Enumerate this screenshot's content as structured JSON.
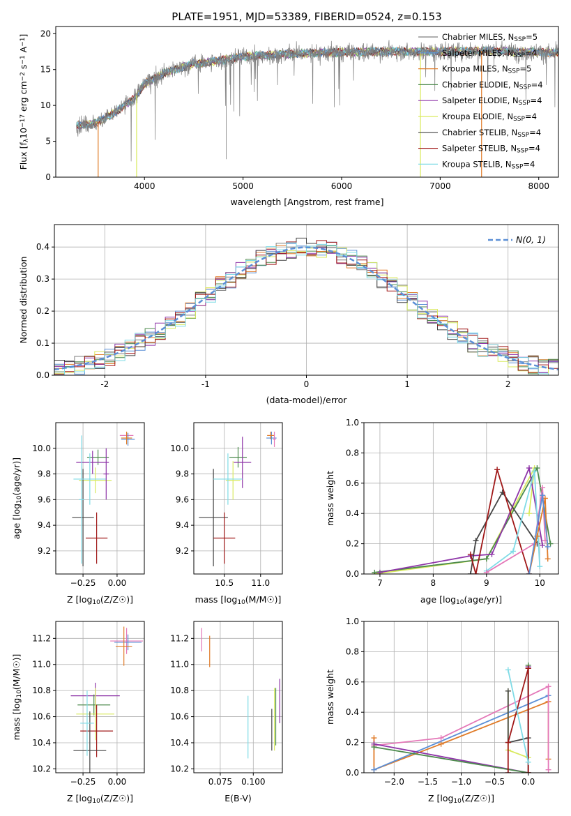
{
  "figure": {
    "title": "PLATE=1951, MJD=53389, FIBERID=0524, z=0.153"
  },
  "colors": {
    "chabrier_miles": "#7f7f7f",
    "salpeter_miles": "#5b8fd6",
    "kroupa_miles": "#e07b28",
    "chabrier_elodie": "#4c8a4c",
    "salpeter_elodie": "#8e35a8",
    "kroupa_elodie": "#d9ea5f",
    "chabrier_stelib": "#444444",
    "salpeter_stelib": "#a01818",
    "kroupa_stelib": "#7fdbe6",
    "pink": "#e478b8",
    "grid": "#b0b0b0"
  },
  "chart_data": [
    {
      "id": "spectrum",
      "type": "line",
      "xlabel": "wavelength [Angstrom, rest frame]",
      "ylabel": "Flux [f_λ10^-17 erg cm^-2 s^-1 A^-1]",
      "xlim": [
        3100,
        8200
      ],
      "ylim": [
        0,
        21
      ],
      "xticks": [
        4000,
        5000,
        6000,
        7000,
        8000
      ],
      "yticks": [
        0,
        5,
        10,
        15,
        20
      ],
      "grid": false,
      "legend_position": "right",
      "legend": [
        {
          "label": "Chabrier MILES, N",
          "sub": "SSP",
          "suffix": "=5",
          "color_key": "chabrier_miles"
        },
        {
          "label": "Salpeter MILES, N",
          "sub": "SSP",
          "suffix": "=4",
          "color_key": "salpeter_miles"
        },
        {
          "label": "Kroupa MILES, N",
          "sub": "SSP",
          "suffix": "=5",
          "color_key": "kroupa_miles"
        },
        {
          "label": "Chabrier ELODIE, N",
          "sub": "SSP",
          "suffix": "=4",
          "color_key": "chabrier_elodie"
        },
        {
          "label": "Salpeter ELODIE, N",
          "sub": "SSP",
          "suffix": "=4",
          "color_key": "salpeter_elodie"
        },
        {
          "label": "Kroupa ELODIE, N",
          "sub": "SSP",
          "suffix": "=4",
          "color_key": "kroupa_elodie"
        },
        {
          "label": "Chabrier STELIB, N",
          "sub": "SSP",
          "suffix": "=4",
          "color_key": "chabrier_stelib"
        },
        {
          "label": "Salpeter STELIB, N",
          "sub": "SSP",
          "suffix": "=4",
          "color_key": "salpeter_stelib"
        },
        {
          "label": "Kroupa STELIB, N",
          "sub": "SSP",
          "suffix": "=4",
          "color_key": "kroupa_stelib"
        }
      ],
      "continuum": [
        [
          3310,
          7.2
        ],
        [
          3500,
          7.5
        ],
        [
          3700,
          9.0
        ],
        [
          3900,
          11.0
        ],
        [
          4000,
          13.0
        ],
        [
          4200,
          14.5
        ],
        [
          4500,
          15.8
        ],
        [
          4800,
          16.3
        ],
        [
          5000,
          16.8
        ],
        [
          5500,
          17.2
        ],
        [
          6000,
          17.4
        ],
        [
          6500,
          17.5
        ],
        [
          7000,
          17.5
        ],
        [
          7500,
          17.6
        ],
        [
          8000,
          17.4
        ],
        [
          8200,
          17.3
        ]
      ],
      "spectrum_range": [
        3310,
        8200
      ],
      "model_drops": [
        {
          "x": 3530,
          "color_key": "kroupa_miles"
        },
        {
          "x": 3920,
          "color_key": "kroupa_elodie"
        },
        {
          "x": 6800,
          "color_key": "kroupa_elodie"
        },
        {
          "x": 7420,
          "color_key": "kroupa_miles"
        }
      ]
    },
    {
      "id": "residual-histogram",
      "type": "histogram",
      "xlabel": "(data-model)/error",
      "ylabel": "Normed distribution",
      "xlim": [
        -2.5,
        2.5
      ],
      "ylim": [
        0,
        0.47
      ],
      "xticks": [
        -2,
        -1,
        0,
        1,
        2
      ],
      "yticks": [
        0.0,
        0.1,
        0.2,
        0.3,
        0.4
      ],
      "grid": true,
      "bin_width": 0.1,
      "legend_position": "top-right",
      "gaussian_label": "N(0, 1)",
      "gaussian_color": "#5b8fd6",
      "series_color_keys": [
        "chabrier_miles",
        "salpeter_miles",
        "kroupa_miles",
        "chabrier_elodie",
        "salpeter_elodie",
        "kroupa_elodie",
        "chabrier_stelib",
        "salpeter_stelib",
        "kroupa_stelib"
      ]
    },
    {
      "id": "age-vs-Z",
      "type": "errorbar",
      "xlabel": "Z [log10(Z/Z☉)]",
      "ylabel": "age [log10(age/yr)]",
      "xlim": [
        -0.45,
        0.2
      ],
      "ylim": [
        9.02,
        10.2
      ],
      "xticks": [
        -0.25,
        0.0
      ],
      "xticklabels": [
        "−0.25",
        "0.00"
      ],
      "yticks": [
        9.2,
        9.4,
        9.6,
        9.8,
        10.0
      ],
      "grid": true,
      "points": [
        {
          "x": 0.07,
          "xerr": 0.05,
          "y": 10.1,
          "yerr": 0.02,
          "color_key": "pink"
        },
        {
          "x": 0.08,
          "xerr": 0.05,
          "y": 10.07,
          "yerr": 0.05,
          "color_key": "salpeter_miles"
        },
        {
          "x": 0.07,
          "xerr": 0.04,
          "y": 10.08,
          "yerr": 0.05,
          "color_key": "kroupa_miles"
        },
        {
          "x": -0.14,
          "xerr": 0.08,
          "y": 9.93,
          "yerr": 0.06,
          "color_key": "chabrier_elodie"
        },
        {
          "x": -0.18,
          "xerr": 0.12,
          "y": 9.89,
          "yerr": 0.09,
          "color_key": "salpeter_elodie"
        },
        {
          "x": -0.16,
          "xerr": 0.12,
          "y": 9.75,
          "yerr": 0.1,
          "color_key": "kroupa_elodie"
        },
        {
          "x": -0.25,
          "xerr": 0.08,
          "y": 9.46,
          "yerr": 0.38,
          "color_key": "chabrier_stelib"
        },
        {
          "x": -0.15,
          "xerr": 0.08,
          "y": 9.3,
          "yerr": 0.2,
          "color_key": "salpeter_stelib"
        },
        {
          "x": -0.2,
          "xerr": 0.12,
          "y": 9.76,
          "yerr": 0.2,
          "color_key": "kroupa_stelib"
        },
        {
          "x": -0.08,
          "xerr": 0.02,
          "y": 9.8,
          "yerr": 0.2,
          "color_key": "salpeter_elodie"
        },
        {
          "x": -0.26,
          "xerr": 0.02,
          "y": 9.6,
          "yerr": 0.5,
          "color_key": "kroupa_stelib"
        }
      ]
    },
    {
      "id": "age-vs-mass",
      "type": "errorbar",
      "xlabel": "mass [log10(M/M☉)]",
      "ylabel": "",
      "xlim": [
        10.08,
        11.3
      ],
      "ylim": [
        9.02,
        10.2
      ],
      "xticks": [
        10.5,
        11.0
      ],
      "xticklabels": [
        "10.5",
        "11.0"
      ],
      "yticks": [
        9.2,
        9.4,
        9.6,
        9.8,
        10.0
      ],
      "grid": true,
      "points": [
        {
          "x": 11.15,
          "xerr": 0.07,
          "y": 10.08,
          "yerr": 0.05,
          "color_key": "salpeter_miles"
        },
        {
          "x": 11.14,
          "xerr": 0.05,
          "y": 10.1,
          "yerr": 0.03,
          "color_key": "kroupa_miles"
        },
        {
          "x": 11.19,
          "xerr": 0.02,
          "y": 10.07,
          "yerr": 0.06,
          "color_key": "pink"
        },
        {
          "x": 10.69,
          "xerr": 0.12,
          "y": 9.93,
          "yerr": 0.08,
          "color_key": "chabrier_elodie"
        },
        {
          "x": 10.75,
          "xerr": 0.12,
          "y": 9.89,
          "yerr": 0.2,
          "color_key": "salpeter_elodie"
        },
        {
          "x": 10.62,
          "xerr": 0.1,
          "y": 9.75,
          "yerr": 0.15,
          "color_key": "kroupa_elodie"
        },
        {
          "x": 10.35,
          "xerr": 0.2,
          "y": 9.46,
          "yerr": 0.38,
          "color_key": "chabrier_stelib"
        },
        {
          "x": 10.5,
          "xerr": 0.15,
          "y": 9.3,
          "yerr": 0.2,
          "color_key": "salpeter_stelib"
        },
        {
          "x": 10.55,
          "xerr": 0.2,
          "y": 9.76,
          "yerr": 0.2,
          "color_key": "kroupa_stelib"
        }
      ]
    },
    {
      "id": "mass-weight-vs-age",
      "type": "line",
      "xlabel": "age [log10(age/yr)]",
      "ylabel": "mass weight",
      "xlim": [
        6.7,
        10.35
      ],
      "ylim": [
        0,
        1.0
      ],
      "xticks": [
        7,
        8,
        9,
        10
      ],
      "yticks": [
        0.0,
        0.2,
        0.4,
        0.6,
        0.8,
        1.0
      ],
      "grid": true,
      "series": [
        {
          "color_key": "kroupa_elodie",
          "x": [
            6.9,
            9.0,
            9.9,
            9.8
          ],
          "y": [
            0.0,
            0.1,
            0.7,
            0.4
          ]
        },
        {
          "color_key": "chabrier_elodie",
          "x": [
            6.9,
            9.0,
            9.95,
            10.2
          ],
          "y": [
            0.01,
            0.1,
            0.7,
            0.2
          ]
        },
        {
          "color_key": "salpeter_elodie",
          "x": [
            7.0,
            8.7,
            9.1,
            9.8,
            10.05
          ],
          "y": [
            0.01,
            0.12,
            0.13,
            0.7,
            0.19
          ]
        },
        {
          "color_key": "chabrier_stelib",
          "x": [
            8.7,
            8.8,
            9.3,
            9.95
          ],
          "y": [
            0.0,
            0.22,
            0.54,
            0.2
          ]
        },
        {
          "color_key": "salpeter_stelib",
          "x": [
            8.7,
            8.8,
            9.2,
            9.8
          ],
          "y": [
            0.13,
            0.0,
            0.69,
            0.0
          ]
        },
        {
          "color_key": "kroupa_stelib",
          "x": [
            9.0,
            9.5,
            9.9,
            10.0
          ],
          "y": [
            0.02,
            0.15,
            0.68,
            0.05
          ]
        },
        {
          "color_key": "pink",
          "x": [
            9.0,
            9.9,
            10.05,
            10.1
          ],
          "y": [
            0.01,
            0.2,
            0.57,
            0.22
          ]
        },
        {
          "color_key": "kroupa_miles",
          "x": [
            9.8,
            9.95,
            10.1,
            10.15
          ],
          "y": [
            0.0,
            0.25,
            0.5,
            0.1
          ]
        },
        {
          "color_key": "salpeter_miles",
          "x": [
            9.8,
            10.05,
            10.15
          ],
          "y": [
            0.0,
            0.52,
            0.18
          ]
        }
      ]
    },
    {
      "id": "mass-vs-Z",
      "type": "errorbar",
      "xlabel": "Z [log10(Z/Z☉)]",
      "ylabel": "mass [log10(M/M☉)]",
      "xlim": [
        -0.45,
        0.2
      ],
      "ylim": [
        10.17,
        11.33
      ],
      "xticks": [
        -0.25,
        0.0
      ],
      "xticklabels": [
        "−0.25",
        "0.00"
      ],
      "yticks": [
        10.2,
        10.4,
        10.6,
        10.8,
        11.0,
        11.2
      ],
      "grid": true,
      "points": [
        {
          "x": 0.07,
          "xerr": 0.12,
          "y": 11.18,
          "yerr": 0.1,
          "color_key": "pink"
        },
        {
          "x": 0.08,
          "xerr": 0.1,
          "y": 11.17,
          "yerr": 0.06,
          "color_key": "salpeter_miles"
        },
        {
          "x": 0.05,
          "xerr": 0.06,
          "y": 11.14,
          "yerr": 0.15,
          "color_key": "kroupa_miles"
        },
        {
          "x": -0.16,
          "xerr": 0.18,
          "y": 10.76,
          "yerr": 0.1,
          "color_key": "salpeter_elodie"
        },
        {
          "x": -0.17,
          "xerr": 0.12,
          "y": 10.69,
          "yerr": 0.08,
          "color_key": "chabrier_elodie"
        },
        {
          "x": -0.16,
          "xerr": 0.14,
          "y": 10.62,
          "yerr": 0.2,
          "color_key": "kroupa_elodie"
        },
        {
          "x": -0.15,
          "xerr": 0.12,
          "y": 10.49,
          "yerr": 0.2,
          "color_key": "salpeter_stelib"
        },
        {
          "x": -0.2,
          "xerr": 0.12,
          "y": 10.34,
          "yerr": 0.3,
          "color_key": "chabrier_stelib"
        },
        {
          "x": -0.22,
          "xerr": 0.05,
          "y": 10.55,
          "yerr": 0.25,
          "color_key": "kroupa_stelib"
        }
      ]
    },
    {
      "id": "mass-vs-EBV",
      "type": "errorbar",
      "xlabel": "E(B-V)",
      "ylabel": "",
      "xlim": [
        0.055,
        0.122
      ],
      "ylim": [
        10.17,
        11.33
      ],
      "xticks": [
        0.075,
        0.1
      ],
      "xticklabels": [
        "0.075",
        "0.100"
      ],
      "yticks": [
        10.2,
        10.4,
        10.6,
        10.8,
        11.0,
        11.2
      ],
      "grid": true,
      "points": [
        {
          "x": 0.061,
          "xerr": 0,
          "y": 11.19,
          "yerr": 0.09,
          "color_key": "pink"
        },
        {
          "x": 0.067,
          "xerr": 0,
          "y": 11.1,
          "yerr": 0.12,
          "color_key": "kroupa_miles"
        },
        {
          "x": 0.096,
          "xerr": 0,
          "y": 10.52,
          "yerr": 0.24,
          "color_key": "kroupa_stelib"
        },
        {
          "x": 0.114,
          "xerr": 0,
          "y": 10.5,
          "yerr": 0.16,
          "color_key": "chabrier_stelib"
        },
        {
          "x": 0.116,
          "xerr": 0,
          "y": 10.58,
          "yerr": 0.24,
          "color_key": "kroupa_elodie"
        },
        {
          "x": 0.117,
          "xerr": 0,
          "y": 10.6,
          "yerr": 0.22,
          "color_key": "chabrier_elodie"
        },
        {
          "x": 0.12,
          "xerr": 0,
          "y": 10.72,
          "yerr": 0.17,
          "color_key": "salpeter_elodie"
        }
      ]
    },
    {
      "id": "mass-weight-vs-Z",
      "type": "line",
      "xlabel": "Z [log10(Z/Z☉)]",
      "ylabel": "mass weight",
      "xlim": [
        -2.45,
        0.45
      ],
      "ylim": [
        0,
        1.0
      ],
      "xticks": [
        -2.0,
        -1.5,
        -1.0,
        -0.5,
        0.0
      ],
      "xticklabels": [
        "−2.0",
        "−1.5",
        "−1.0",
        "−0.5",
        "0.0"
      ],
      "yticks": [
        0.0,
        0.2,
        0.4,
        0.6,
        0.8,
        1.0
      ],
      "grid": true,
      "series": [
        {
          "color_key": "kroupa_miles",
          "x": [
            -2.3,
            -2.3,
            -1.3,
            0.3,
            0.3
          ],
          "y": [
            0.23,
            0.02,
            0.19,
            0.47,
            0.09
          ]
        },
        {
          "color_key": "salpeter_miles",
          "x": [
            -2.3,
            0.3
          ],
          "y": [
            0.02,
            0.51
          ]
        },
        {
          "color_key": "pink",
          "x": [
            -2.3,
            -1.3,
            0.3,
            0.3
          ],
          "y": [
            0.18,
            0.23,
            0.57,
            0.02
          ]
        },
        {
          "color_key": "salpeter_elodie",
          "x": [
            -2.3,
            0.0,
            0.0
          ],
          "y": [
            0.19,
            0.0,
            0.7
          ]
        },
        {
          "color_key": "chabrier_elodie",
          "x": [
            -2.3,
            0.0,
            0.0
          ],
          "y": [
            0.17,
            0.0,
            0.71
          ]
        },
        {
          "color_key": "kroupa_elodie",
          "x": [
            -0.3,
            -0.3,
            0.0
          ],
          "y": [
            0.54,
            0.15,
            0.1
          ]
        },
        {
          "color_key": "chabrier_stelib",
          "x": [
            -0.3,
            -0.3,
            0.0,
            0.0
          ],
          "y": [
            0.54,
            0.2,
            0.23,
            0.69
          ]
        },
        {
          "color_key": "salpeter_stelib",
          "x": [
            -0.3,
            -0.3,
            0.0,
            0.0
          ],
          "y": [
            0.0,
            0.2,
            0.69,
            0.0
          ]
        },
        {
          "color_key": "kroupa_stelib",
          "x": [
            -0.3,
            0.0
          ],
          "y": [
            0.68,
            0.07
          ]
        }
      ]
    }
  ]
}
